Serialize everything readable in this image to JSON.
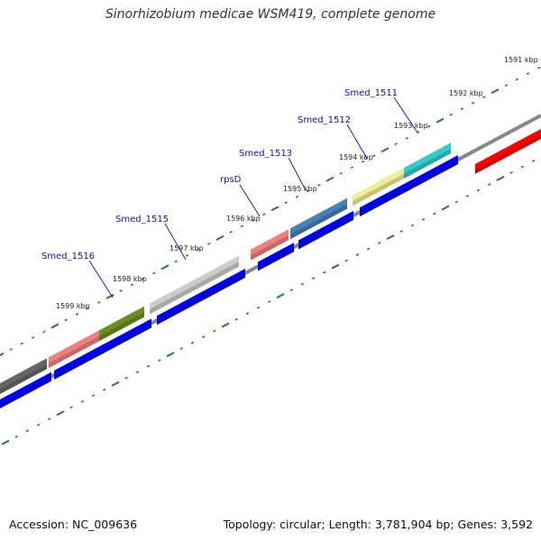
{
  "title": "Sinorhizobium medicae WSM419, complete genome",
  "footer": {
    "accession": "Accession: NC_009636",
    "summary": "Topology: circular; Length: 3,781,904 bp; Genes: 3,592"
  },
  "scale_labels": [
    "1591 kbp",
    "1592 kbp",
    "1593 kbp",
    "1594 kbp",
    "1595 kbp",
    "1596 kbp",
    "1597 kbp",
    "1598 kbp",
    "1599 kbp"
  ],
  "gene_labels": [
    "Smed_1511",
    "Smed_1512",
    "Smed_1513",
    "rpsD",
    "Smed_1515",
    "Smed_1516"
  ],
  "colors": {
    "backbone": "#888888",
    "ticks": "#2a7a2a",
    "cds": "#0000ee",
    "reverse_gene": "#ff0000",
    "label_line": "#1a1acc"
  },
  "genes": [
    {
      "name": "Smed_1511",
      "color": "#33cccc"
    },
    {
      "name": "Smed_1512",
      "color": "#eeee99"
    },
    {
      "name": "Smed_1513",
      "color": "#4682b4"
    },
    {
      "name": "rpsD",
      "color": "#f08080"
    },
    {
      "name": "Smed_1515",
      "color": "#cccccc"
    },
    {
      "name": "Smed_1516",
      "color": "#6b8e23"
    },
    {
      "name": "",
      "color": "#f08080"
    },
    {
      "name": "",
      "color": "#666666"
    }
  ]
}
